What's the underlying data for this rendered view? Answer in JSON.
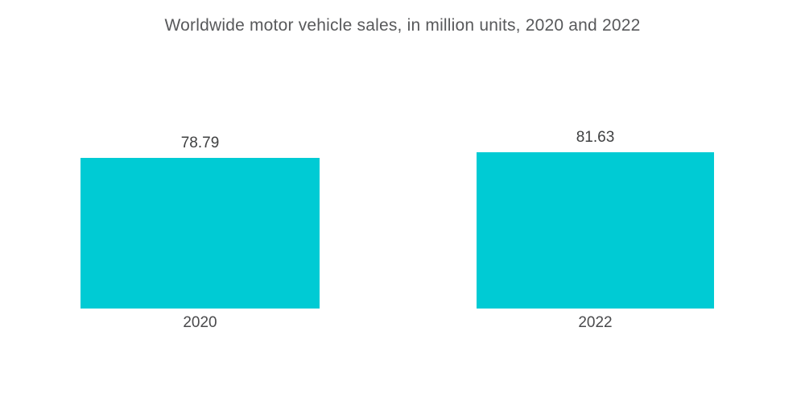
{
  "page": {
    "background_color": "#FFFFFF"
  },
  "chart_data": {
    "type": "bar",
    "title": "Worldwide motor vehicle sales, in million units, 2020 and 2022",
    "categories": [
      "2020",
      "2022"
    ],
    "values": [
      78.79,
      81.63
    ],
    "value_labels": [
      "78.79",
      "81.63"
    ],
    "xlabel": "",
    "ylabel": "",
    "ylim": [
      0,
      82
    ],
    "grid": false,
    "legend": "none",
    "axes_visible": false,
    "bar_color": "#00CBD4",
    "title_color": "#58595B",
    "value_label_color": "#3F4041",
    "category_label_color": "#4A4A4C"
  }
}
